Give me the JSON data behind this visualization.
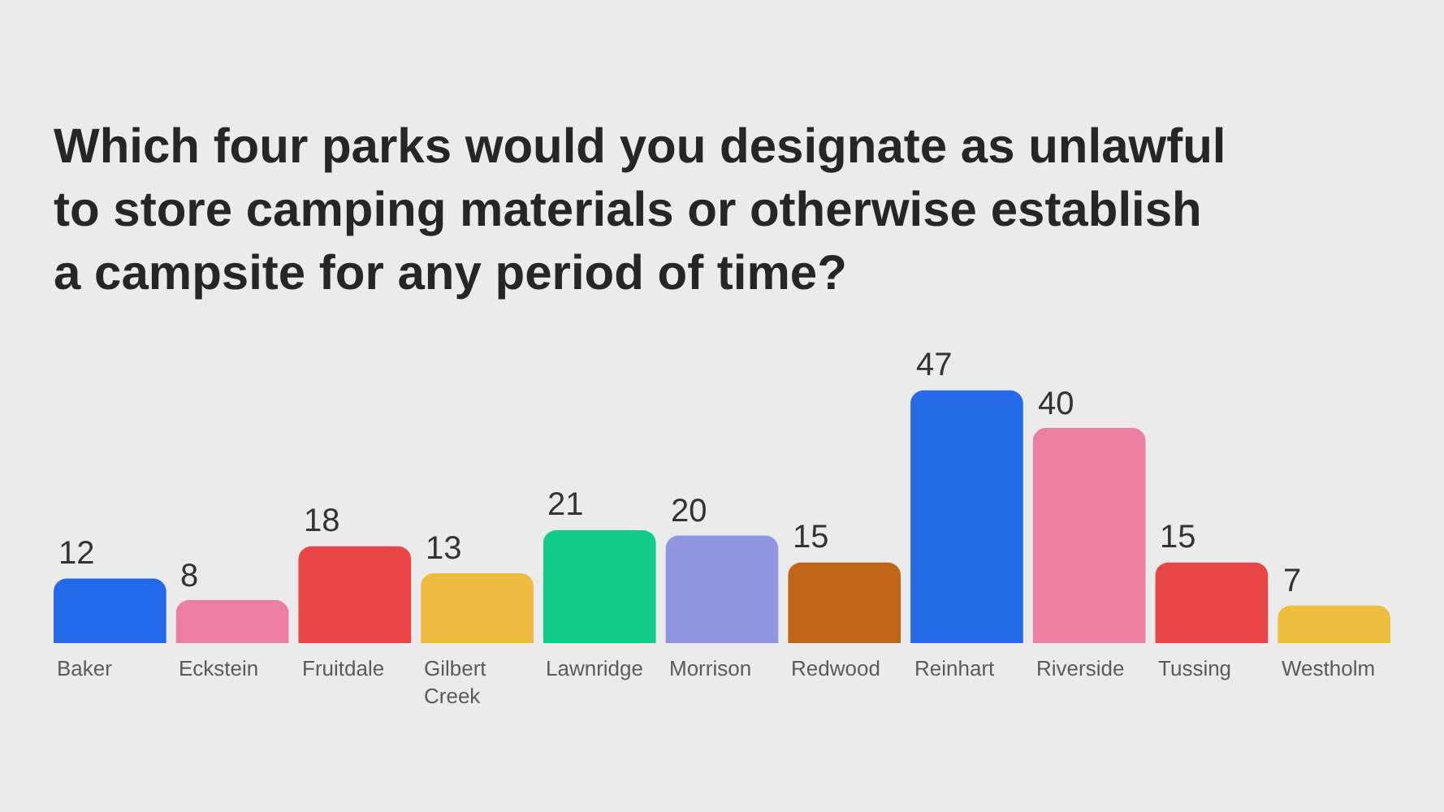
{
  "chart_data": {
    "type": "bar",
    "title": "Which four parks would you designate as unlawful to store camping materials or otherwise establish a campsite for any period of time?",
    "categories": [
      "Baker",
      "Eckstein",
      "Fruitdale",
      "Gilbert Creek",
      "Lawnridge",
      "Morrison",
      "Redwood",
      "Reinhart",
      "Riverside",
      "Tussing",
      "Westholm"
    ],
    "values": [
      12,
      8,
      18,
      13,
      21,
      20,
      15,
      47,
      40,
      15,
      7
    ],
    "colors": [
      "#2469e8",
      "#eb7ea3",
      "#e84545",
      "#ecbb3f",
      "#12cd8a",
      "#9196e0",
      "#c0661a",
      "#256be8",
      "#eb7fa2",
      "#e84646",
      "#edbd3f"
    ],
    "data_labels": true
  }
}
